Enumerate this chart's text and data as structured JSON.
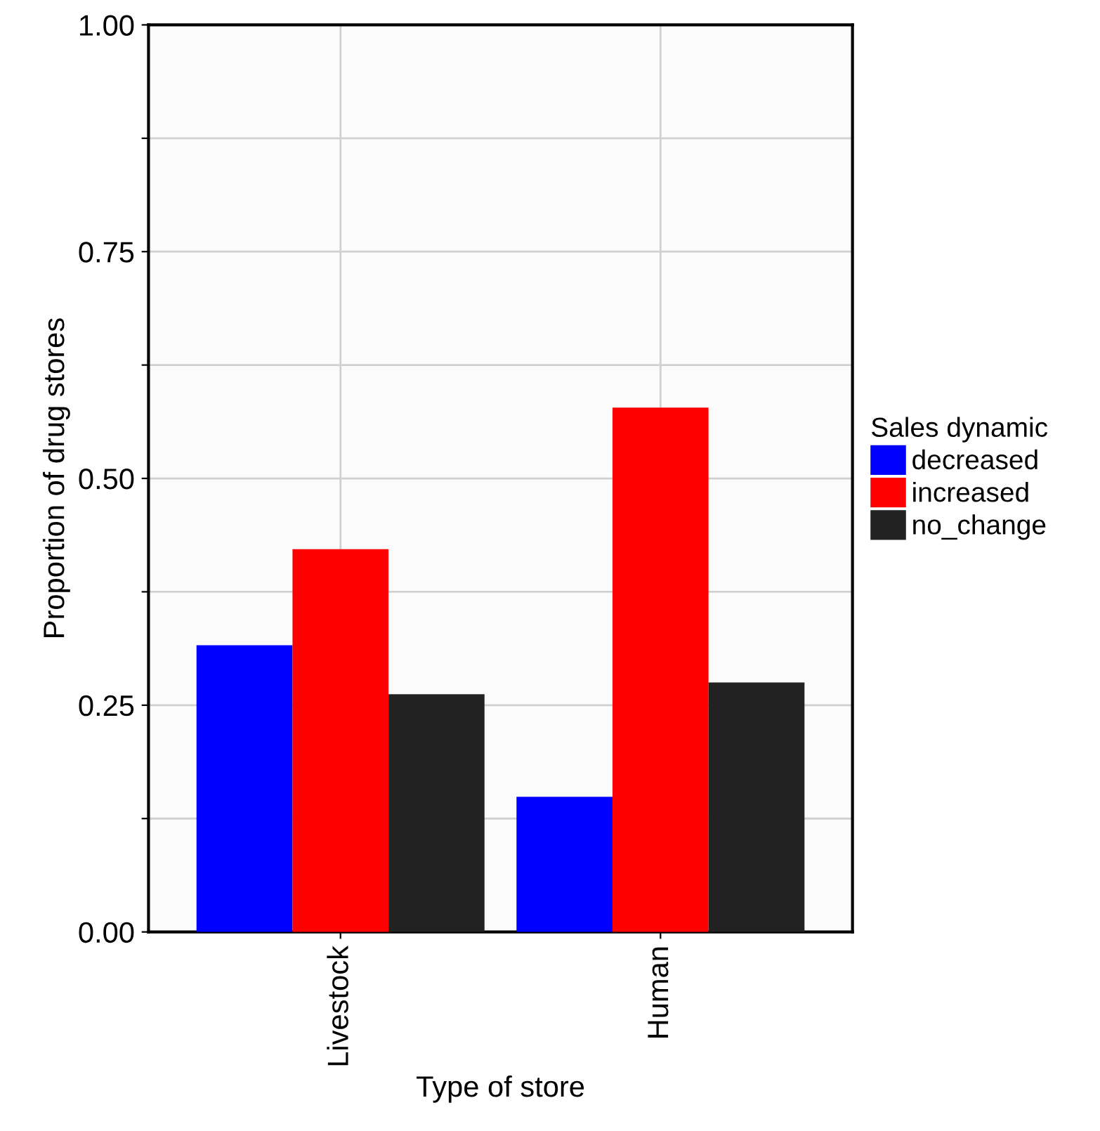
{
  "chart_data": {
    "type": "bar",
    "xlabel": "Type of store",
    "ylabel": "Proportion of drug stores",
    "legend_title": "Sales dynamic",
    "categories": [
      "Livestock",
      "Human"
    ],
    "series": [
      {
        "name": "decreased",
        "color": "#0000ff",
        "values": [
          0.316,
          0.149
        ]
      },
      {
        "name": "increased",
        "color": "#ff0000",
        "values": [
          0.422,
          0.578
        ]
      },
      {
        "name": "no_change",
        "color": "#222222",
        "values": [
          0.262,
          0.275
        ]
      }
    ],
    "ylim": [
      0,
      1
    ],
    "yticks": [
      "0.00",
      {
        "value": 0.125,
        "label": null
      },
      {
        "value": 0.25,
        "label": "0.25"
      },
      {
        "value": 0.375,
        "label": null
      },
      {
        "value": 0.5,
        "label": "0.50"
      },
      {
        "value": 0.625,
        "label": null
      },
      {
        "value": 0.75,
        "label": "0.75"
      },
      {
        "value": 0.875,
        "label": null
      },
      {
        "value": 1,
        "label": "1.00"
      }
    ],
    "grid": true,
    "legend": "right"
  }
}
